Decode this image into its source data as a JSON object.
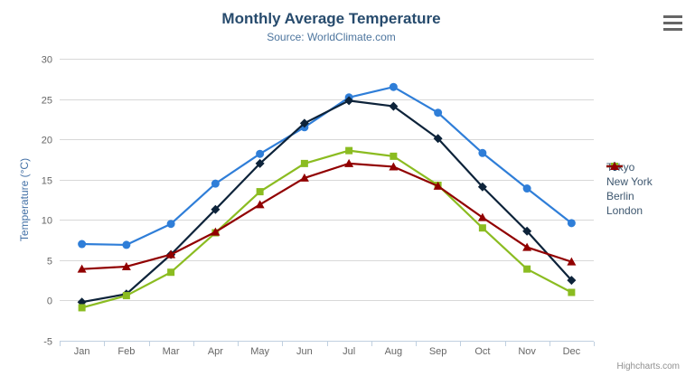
{
  "header": {
    "title": "Monthly Average Temperature",
    "subtitle": "Source: WorldClimate.com"
  },
  "credits": {
    "label": "Highcharts.com"
  },
  "menu": {
    "icon": "hamburger-icon"
  },
  "colors": {
    "title": "#274b6d",
    "subtitle": "#4d759e",
    "axis_label": "#666666",
    "y_axis_title": "#4572a7",
    "gridline": "#d8d8d8",
    "axis_line": "#c0d0e0",
    "legend_text": "#3e576f",
    "credits_text": "#909090",
    "background": "#ffffff"
  },
  "chart_data": {
    "type": "line",
    "title": "Monthly Average Temperature",
    "subtitle": "Source: WorldClimate.com",
    "categories": [
      "Jan",
      "Feb",
      "Mar",
      "Apr",
      "May",
      "Jun",
      "Jul",
      "Aug",
      "Sep",
      "Oct",
      "Nov",
      "Dec"
    ],
    "xlabel": "",
    "ylabel": "Temperature (°C)",
    "ylim": [
      -5,
      30
    ],
    "ytick_interval": 5,
    "grid": true,
    "legend_position": "right",
    "series": [
      {
        "name": "Tokyo",
        "color": "#2f7ed8",
        "marker": "circle",
        "values": [
          7.0,
          6.9,
          9.5,
          14.5,
          18.2,
          21.5,
          25.2,
          26.5,
          23.3,
          18.3,
          13.9,
          9.6
        ]
      },
      {
        "name": "New York",
        "color": "#0d233a",
        "marker": "diamond",
        "values": [
          -0.2,
          0.8,
          5.7,
          11.3,
          17.0,
          22.0,
          24.8,
          24.1,
          20.1,
          14.1,
          8.6,
          2.5
        ]
      },
      {
        "name": "Berlin",
        "color": "#8bbc21",
        "marker": "square",
        "values": [
          -0.9,
          0.6,
          3.5,
          8.4,
          13.5,
          17.0,
          18.6,
          17.9,
          14.3,
          9.0,
          3.9,
          1.0
        ]
      },
      {
        "name": "London",
        "color": "#910000",
        "marker": "triangle",
        "values": [
          3.9,
          4.2,
          5.7,
          8.5,
          11.9,
          15.2,
          17.0,
          16.6,
          14.2,
          10.3,
          6.6,
          4.8
        ]
      }
    ]
  }
}
